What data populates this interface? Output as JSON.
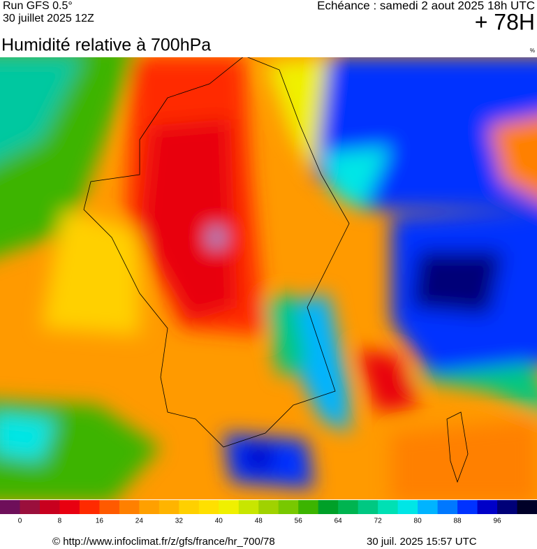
{
  "header": {
    "run": "Run GFS 0.5°",
    "run_date": "30 juillet 2025 12Z",
    "echeance": "Echéance : samedi 2 aout 2025 18h UTC",
    "lead": "+ 78H",
    "title": "Humidité relative à 700hPa",
    "unit": "%"
  },
  "colorbar": {
    "lim": [
      -4,
      104
    ],
    "ticks": [
      0,
      8,
      16,
      24,
      32,
      40,
      48,
      56,
      64,
      72,
      80,
      88,
      96
    ],
    "colors": [
      "#6e0f5a",
      "#9a0f3c",
      "#c8001e",
      "#e80010",
      "#ff2a00",
      "#ff5a00",
      "#ff8000",
      "#ffa000",
      "#ffb400",
      "#ffd000",
      "#ffe000",
      "#f0f000",
      "#c8e600",
      "#a0d200",
      "#78c800",
      "#3cb400",
      "#00a028",
      "#00b450",
      "#00c882",
      "#00e0b4",
      "#00e6e6",
      "#00b4ff",
      "#0078ff",
      "#0032ff",
      "#0000c8",
      "#000078",
      "#000028"
    ]
  },
  "footer": {
    "source": "© http://www.infoclimat.fr/z/gfs/france/hr_700/78",
    "generated": "30 juil. 2025 15:57 UTC"
  }
}
